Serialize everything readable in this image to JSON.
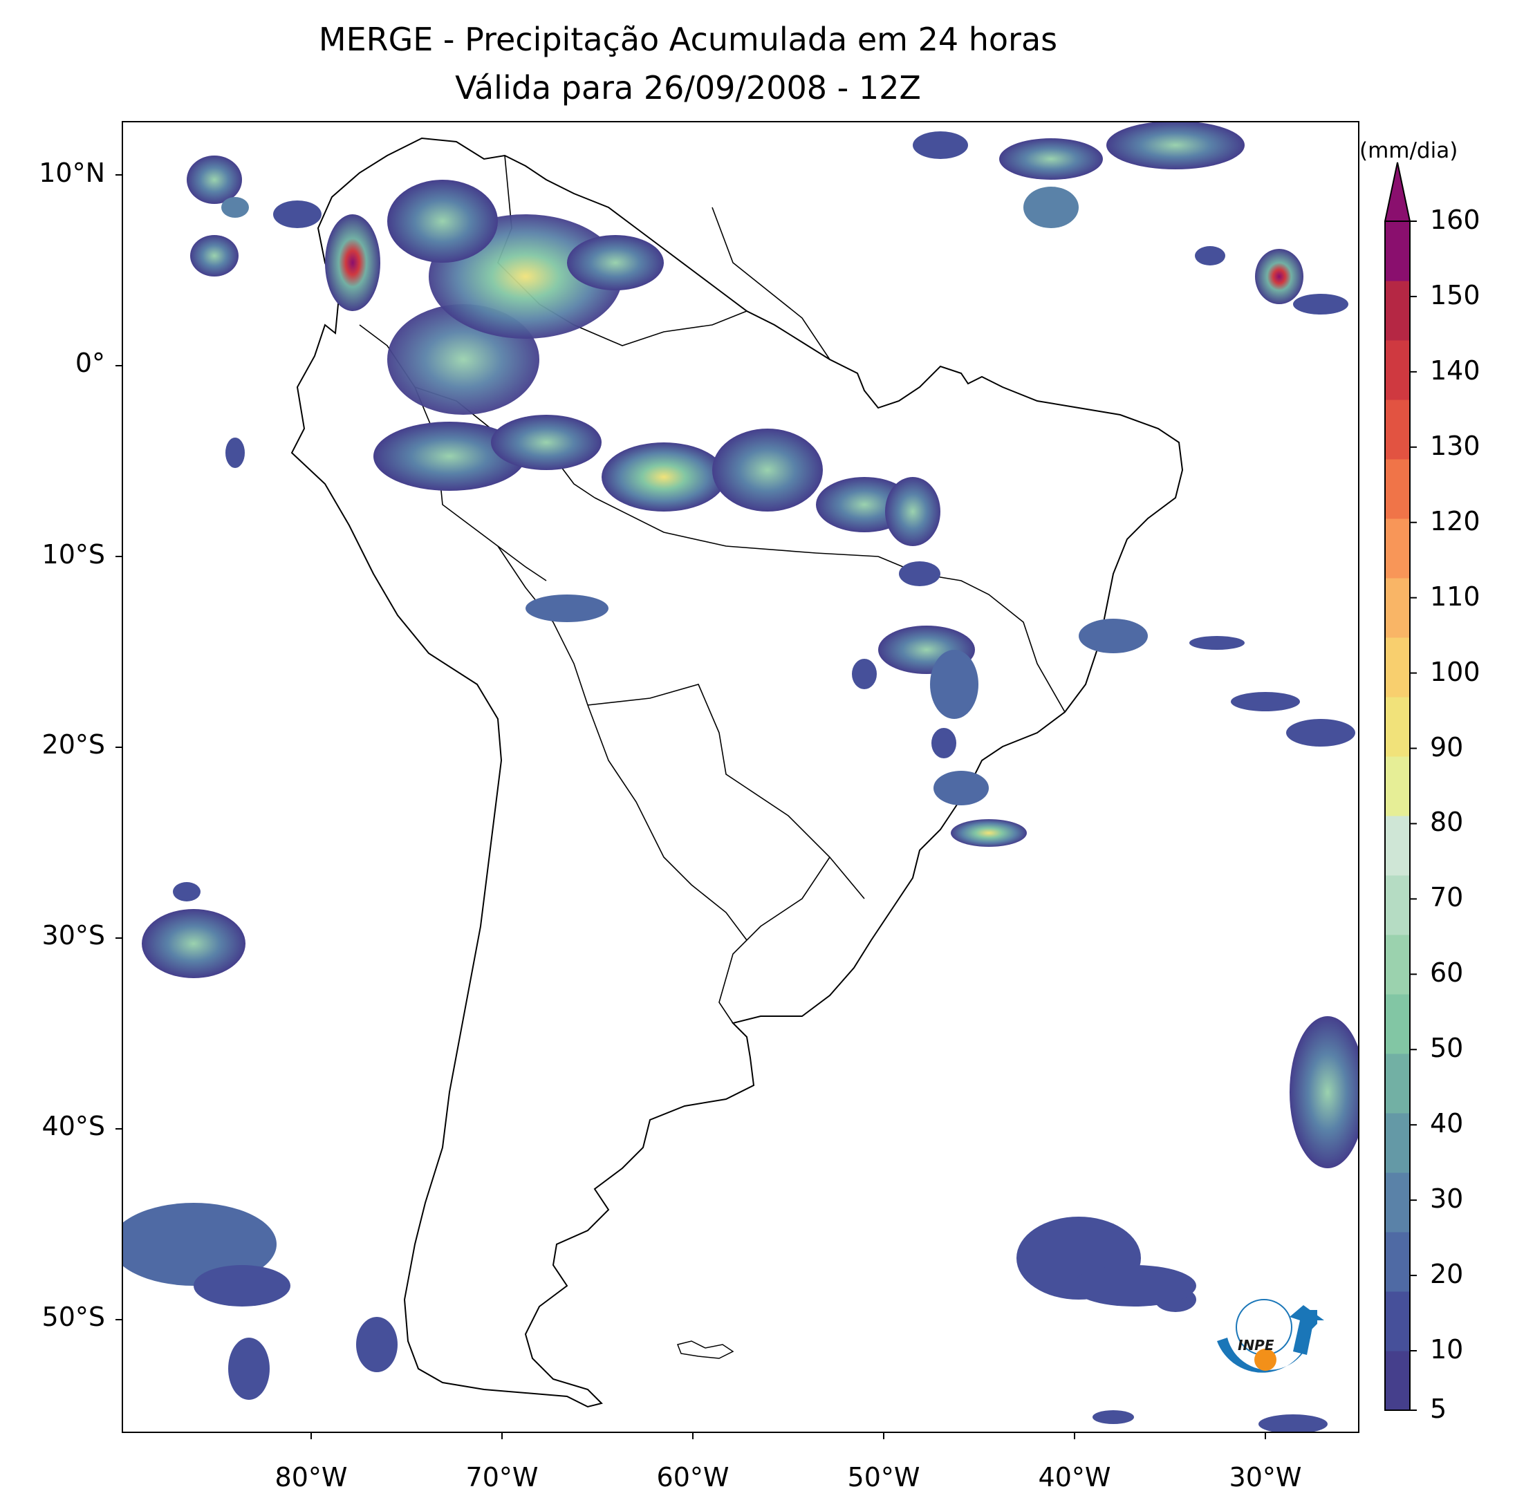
{
  "title_line1": "MERGE - Precipitação Acumulada em 24 horas",
  "title_line2": "Válida para 26/09/2008 - 12Z",
  "lat_labels": [
    "10°N",
    "0°",
    "10°S",
    "20°S",
    "30°S",
    "40°S",
    "50°S"
  ],
  "lon_labels": [
    "80°W",
    "70°W",
    "60°W",
    "50°W",
    "40°W",
    "30°W"
  ],
  "colorbar": {
    "unit": "(mm/dia)",
    "ticks": [
      "5",
      "10",
      "20",
      "30",
      "40",
      "50",
      "60",
      "70",
      "80",
      "90",
      "100",
      "110",
      "120",
      "130",
      "140",
      "150",
      "160"
    ],
    "colors": [
      "#453f8c",
      "#46509a",
      "#4f6aa4",
      "#5a82a8",
      "#6499a6",
      "#72b0a4",
      "#82c6a4",
      "#9bd2ae",
      "#b5dcc3",
      "#cfe6d6",
      "#e6ee96",
      "#f1e27a",
      "#f8cf6e",
      "#f9b566",
      "#f89658",
      "#f07448",
      "#e25341",
      "#cf3940",
      "#b52744",
      "#8a0f6e"
    ]
  },
  "logo": {
    "text": "INPE",
    "colors": {
      "blue": "#1a76b8",
      "orange": "#f39019"
    }
  },
  "map": {
    "lon_range": [
      -90,
      -25
    ],
    "lat_range": [
      -55,
      13
    ],
    "land_fill": "#ffffff",
    "border_color": "#000000"
  }
}
